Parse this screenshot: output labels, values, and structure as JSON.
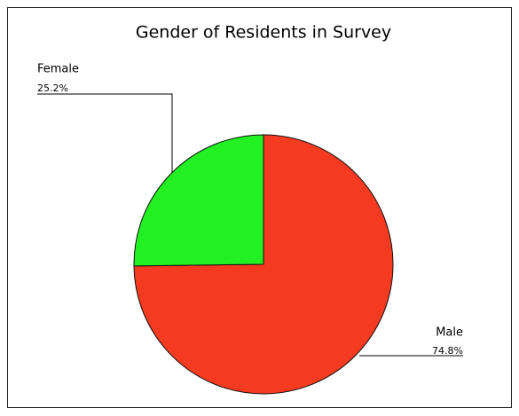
{
  "chart_data": {
    "type": "pie",
    "title": "Gender of Residents in Survey",
    "categories": [
      "Male",
      "Female"
    ],
    "values": [
      74.8,
      25.2
    ],
    "value_labels": [
      "74.8%",
      "25.2%"
    ],
    "colors": [
      "#f43a20",
      "#22f022"
    ]
  }
}
